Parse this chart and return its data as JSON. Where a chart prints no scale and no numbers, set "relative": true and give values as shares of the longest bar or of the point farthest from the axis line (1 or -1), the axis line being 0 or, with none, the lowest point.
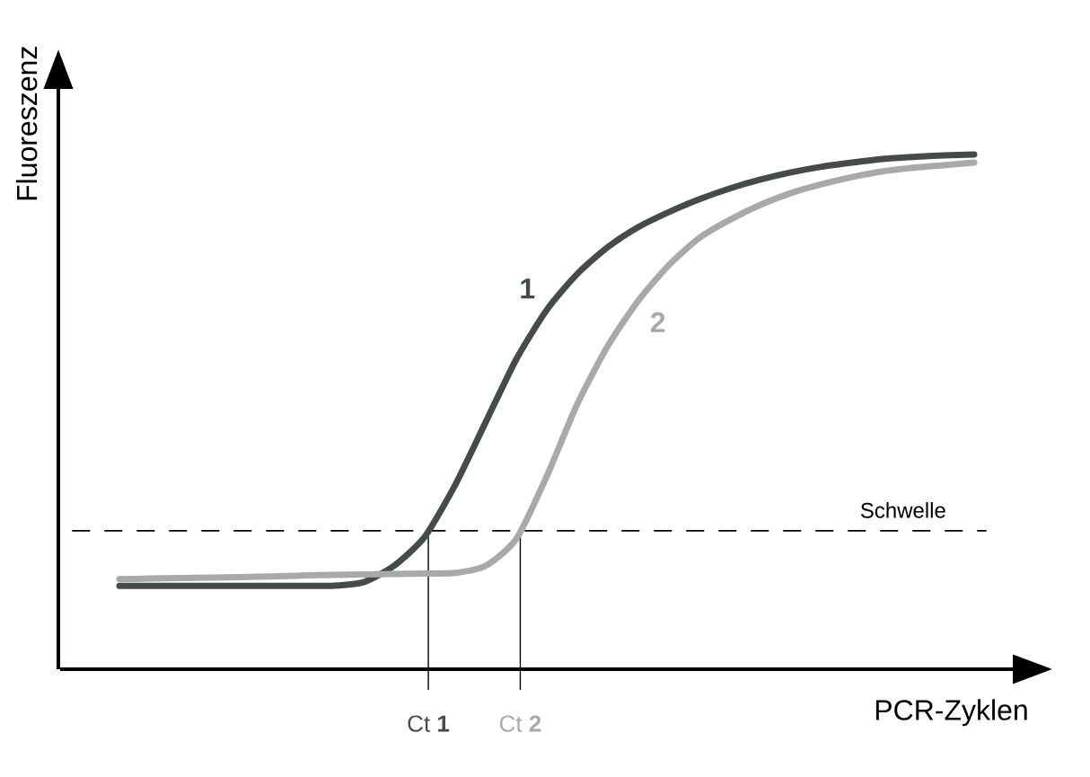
{
  "chart_data": {
    "type": "line",
    "relative": true,
    "xlabel": "PCR-Zyklen",
    "ylabel": "Fluoreszenz",
    "categories": [
      null,
      null,
      null,
      null,
      null,
      null,
      null,
      null,
      null,
      null,
      null,
      null,
      null,
      null,
      null,
      null,
      null,
      null,
      null,
      null,
      null,
      null,
      null,
      null,
      null,
      null,
      null,
      null,
      null
    ],
    "series": [
      {
        "name": "1",
        "color": "#454b48",
        "values": [
          0.162,
          0.162,
          0.162,
          0.162,
          0.162,
          0.162,
          0.162,
          0.162,
          0.169,
          0.201,
          0.257,
          0.358,
          0.48,
          0.602,
          0.698,
          0.768,
          0.82,
          0.859,
          0.888,
          0.913,
          0.934,
          0.951,
          0.965,
          0.976,
          0.984,
          0.991,
          0.995,
          0.998,
          1
        ]
      },
      {
        "name": "2",
        "color": "#a7aaa9",
        "values": [
          0.175,
          0.176,
          0.177,
          0.178,
          0.179,
          0.18,
          0.182,
          0.183,
          0.184,
          0.185,
          0.186,
          0.187,
          0.201,
          0.253,
          0.375,
          0.515,
          0.628,
          0.716,
          0.785,
          0.838,
          0.873,
          0.902,
          0.925,
          0.942,
          0.956,
          0.967,
          0.974,
          0.979,
          0.984
        ]
      }
    ],
    "ref_lines": [
      {
        "axis": "y",
        "value": 0.269,
        "label": "Schwelle",
        "color": "#000000",
        "line_style": "dashed"
      }
    ],
    "annotations": [
      "Ct **1**",
      "Ct **2**"
    ],
    "marker": "none",
    "line_style": "solid"
  }
}
